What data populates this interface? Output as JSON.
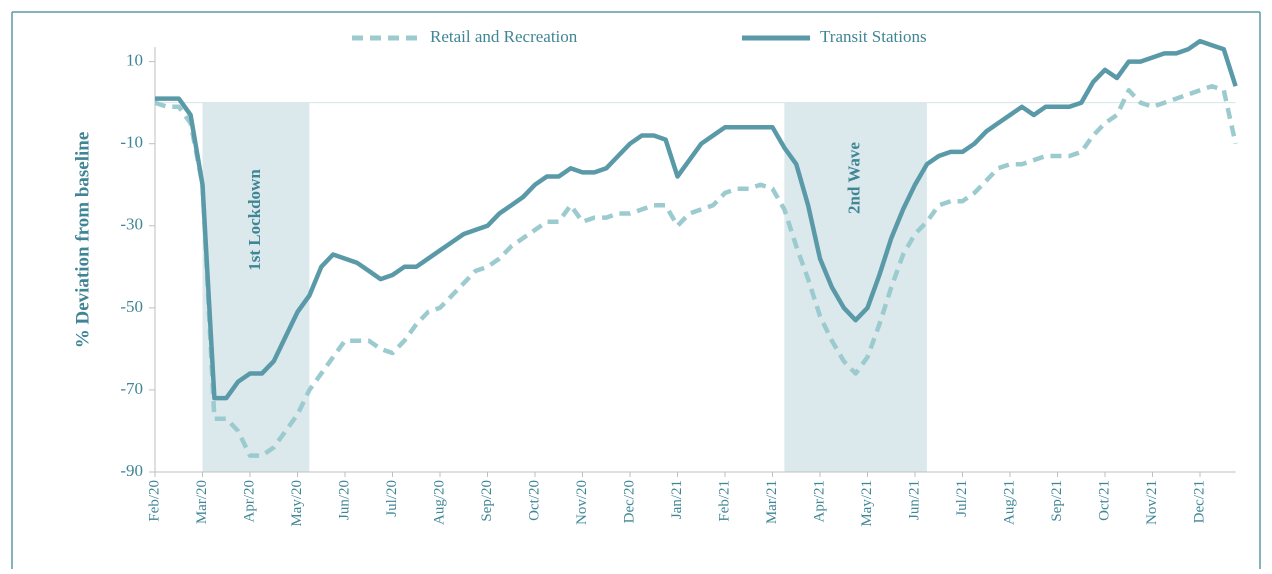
{
  "chart_data": {
    "type": "line",
    "y_label": "% Deviation from baseline",
    "categories": [
      "Feb/20",
      null,
      null,
      null,
      "Mar/20",
      null,
      null,
      null,
      "Apr/20",
      null,
      null,
      null,
      "May/20",
      null,
      null,
      null,
      "Jun/20",
      null,
      null,
      null,
      "Jul/20",
      null,
      null,
      null,
      "Aug/20",
      null,
      null,
      null,
      "Sep/20",
      null,
      null,
      null,
      "Oct/20",
      null,
      null,
      null,
      "Nov/20",
      null,
      null,
      null,
      "Dec/20",
      null,
      null,
      null,
      "Jan/21",
      null,
      null,
      null,
      "Feb/21",
      null,
      null,
      null,
      "Mar/21",
      null,
      null,
      null,
      "Apr/21",
      null,
      null,
      null,
      "May/21",
      null,
      null,
      null,
      "Jun/21",
      null,
      null,
      null,
      "Jul/21",
      null,
      null,
      null,
      "Aug/21",
      null,
      null,
      null,
      "Sep/21",
      null,
      null,
      null,
      "Oct/21",
      null,
      null,
      null,
      "Nov/21",
      null,
      null,
      null,
      "Dec/21",
      null,
      null,
      null
    ],
    "series": [
      {
        "name": "Retail and Recreation",
        "color": "#9ccbcf",
        "dash": true,
        "values": [
          0,
          -1,
          -1,
          -5,
          -20,
          -77,
          -77,
          -80,
          -86,
          -86,
          -84,
          -80,
          -76,
          -70,
          -66,
          -62,
          -58,
          -58,
          -58,
          -60,
          -61,
          -58,
          -54,
          -51,
          -50,
          -47,
          -44,
          -41,
          -40,
          -38,
          -35,
          -33,
          -31,
          -29,
          -29,
          -25,
          -29,
          -28,
          -28,
          -27,
          -27,
          -26,
          -25,
          -25,
          -30,
          -27,
          -26,
          -25,
          -22,
          -21,
          -21,
          -20,
          -21,
          -26,
          -35,
          -43,
          -52,
          -58,
          -63,
          -66,
          -62,
          -54,
          -45,
          -37,
          -32,
          -29,
          -25,
          -24,
          -24,
          -22,
          -19,
          -16,
          -15,
          -15,
          -14,
          -13,
          -13,
          -13,
          -12,
          -8,
          -5,
          -3,
          3,
          0,
          -1,
          0,
          1,
          2,
          3,
          4,
          3,
          -10
        ]
      },
      {
        "name": "Transit Stations",
        "color": "#5a9aa8",
        "dash": false,
        "values": [
          1,
          1,
          1,
          -3,
          -20,
          -72,
          -72,
          -68,
          -66,
          -66,
          -63,
          -57,
          -51,
          -47,
          -40,
          -37,
          -38,
          -39,
          -41,
          -43,
          -42,
          -40,
          -40,
          -38,
          -36,
          -34,
          -32,
          -31,
          -30,
          -27,
          -25,
          -23,
          -20,
          -18,
          -18,
          -16,
          -17,
          -17,
          -16,
          -13,
          -10,
          -8,
          -8,
          -9,
          -18,
          -14,
          -10,
          -8,
          -6,
          -6,
          -6,
          -6,
          -6,
          -11,
          -15,
          -25,
          -38,
          -45,
          -50,
          -53,
          -50,
          -42,
          -33,
          -26,
          -20,
          -15,
          -13,
          -12,
          -12,
          -10,
          -7,
          -5,
          -3,
          -1,
          -3,
          -1,
          -1,
          -1,
          0,
          5,
          8,
          6,
          10,
          10,
          11,
          12,
          12,
          13,
          15,
          14,
          13,
          4
        ]
      }
    ],
    "bands": [
      {
        "label": "1st Lockdown",
        "start": 4,
        "end": 13
      },
      {
        "label": "2nd Wave",
        "start": 53,
        "end": 65
      }
    ],
    "ylim": [
      -90,
      16
    ],
    "yticks": [
      -90,
      -70,
      -50,
      -30,
      -10,
      10
    ],
    "grid": false,
    "legend": "top"
  }
}
